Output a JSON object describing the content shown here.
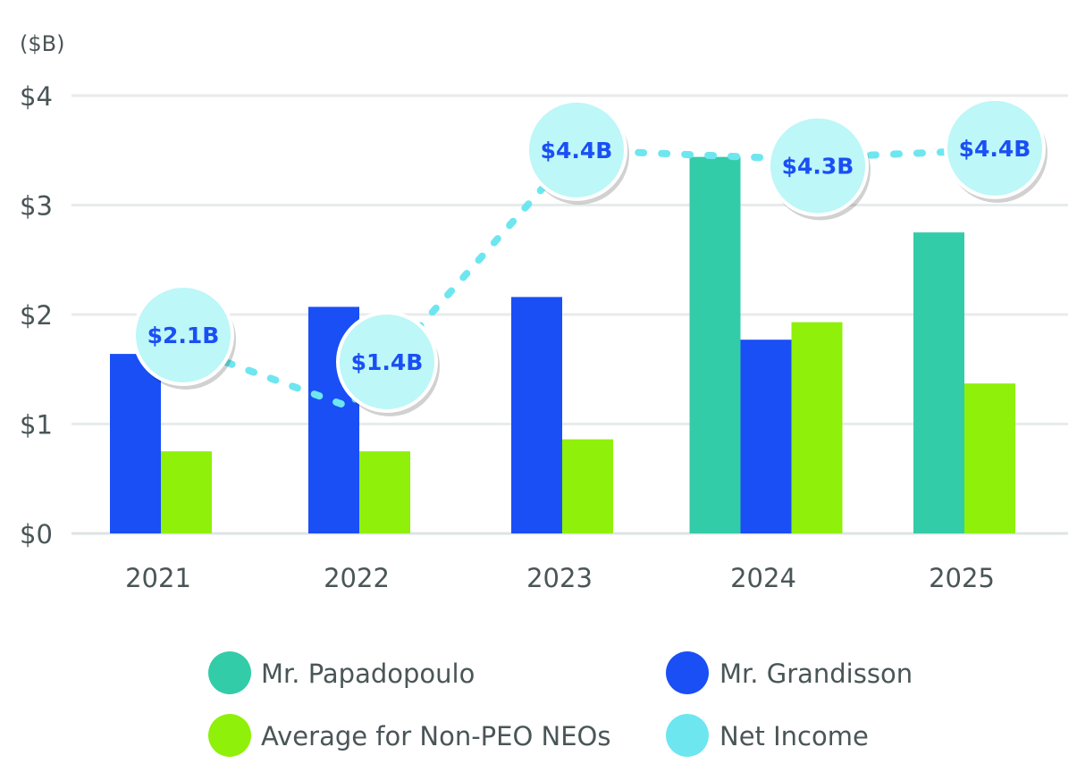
{
  "chart_data": {
    "type": "bar",
    "unit_label": "($B)",
    "categories": [
      "2021",
      "2022",
      "2023",
      "2024",
      "2025"
    ],
    "ylim": [
      0,
      4
    ],
    "yticks": [
      0,
      1,
      2,
      3,
      4
    ],
    "ytick_labels": [
      "$0",
      "$1",
      "$2",
      "$3",
      "$4"
    ],
    "grid": true,
    "legend_position": "bottom",
    "series": [
      {
        "name": "Mr. Papadopoulo",
        "color": "#33cca8",
        "values": [
          null,
          null,
          null,
          3.44,
          2.75
        ]
      },
      {
        "name": "Mr. Grandisson",
        "color": "#1a4ff5",
        "values": [
          1.64,
          2.07,
          2.16,
          1.77,
          null
        ]
      },
      {
        "name": "Average for Non-PEO NEOs",
        "color": "#8ff00a",
        "values": [
          0.75,
          0.75,
          0.86,
          1.93,
          1.37
        ]
      }
    ],
    "line_series": {
      "name": "Net Income",
      "type": "line",
      "style": "dotted",
      "color": "#6ee6f0",
      "values": [
        2.1,
        1.4,
        4.4,
        4.3,
        4.4
      ],
      "labels": [
        "$2.1B",
        "$1.4B",
        "$4.4B",
        "$4.3B",
        "$4.4B"
      ],
      "label_circle_color": "#bdf7f7",
      "label_text_color": "#1a4ff5"
    }
  }
}
